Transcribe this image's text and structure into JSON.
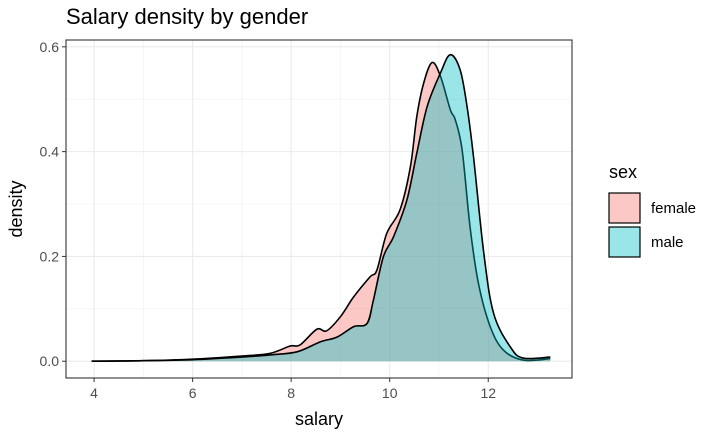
{
  "chart_data": {
    "type": "area",
    "title": "Salary density by gender",
    "xlabel": "salary",
    "ylabel": "density",
    "xlim": [
      3.43,
      13.7
    ],
    "ylim": [
      -0.032,
      0.613
    ],
    "xticks": [
      4,
      6,
      8,
      10,
      12
    ],
    "xtick_labels": [
      "4",
      "6",
      "8",
      "10",
      "12"
    ],
    "yticks": [
      0,
      0.2,
      0.4,
      0.6
    ],
    "ytick_labels": [
      "0.0",
      "0.2",
      "0.4",
      "0.6"
    ],
    "grid": true,
    "legend": {
      "title": "sex",
      "placement": "right",
      "entries": [
        "female",
        "male"
      ]
    },
    "series": [
      {
        "name": "female",
        "color": "#F8766D",
        "alpha": 0.4,
        "x": [
          3.95,
          5.0,
          6.0,
          7.0,
          7.57,
          7.98,
          8.18,
          8.52,
          8.72,
          9.0,
          9.27,
          9.6,
          9.74,
          9.94,
          10.21,
          10.42,
          10.55,
          10.69,
          10.86,
          11.03,
          11.23,
          11.33,
          11.47,
          11.63,
          11.8,
          12.04,
          12.31,
          12.72,
          13.26
        ],
        "y": [
          0.0,
          0.001,
          0.004,
          0.01,
          0.015,
          0.029,
          0.031,
          0.061,
          0.058,
          0.085,
          0.123,
          0.161,
          0.174,
          0.244,
          0.289,
          0.371,
          0.467,
          0.531,
          0.57,
          0.544,
          0.48,
          0.461,
          0.403,
          0.257,
          0.149,
          0.066,
          0.021,
          0.002,
          0.005
        ]
      },
      {
        "name": "male",
        "color": "#00BFC4",
        "alpha": 0.4,
        "x": [
          3.95,
          5.0,
          6.0,
          7.0,
          7.57,
          8.12,
          8.59,
          8.93,
          9.27,
          9.54,
          9.67,
          9.87,
          10.08,
          10.35,
          10.55,
          10.76,
          11.03,
          11.23,
          11.43,
          11.57,
          11.7,
          11.91,
          12.11,
          12.45,
          12.71,
          13.26
        ],
        "y": [
          0.0,
          0.001,
          0.003,
          0.008,
          0.012,
          0.018,
          0.037,
          0.046,
          0.066,
          0.072,
          0.117,
          0.199,
          0.238,
          0.308,
          0.397,
          0.486,
          0.55,
          0.585,
          0.556,
          0.486,
          0.391,
          0.206,
          0.091,
          0.027,
          0.006,
          0.008
        ]
      }
    ]
  }
}
